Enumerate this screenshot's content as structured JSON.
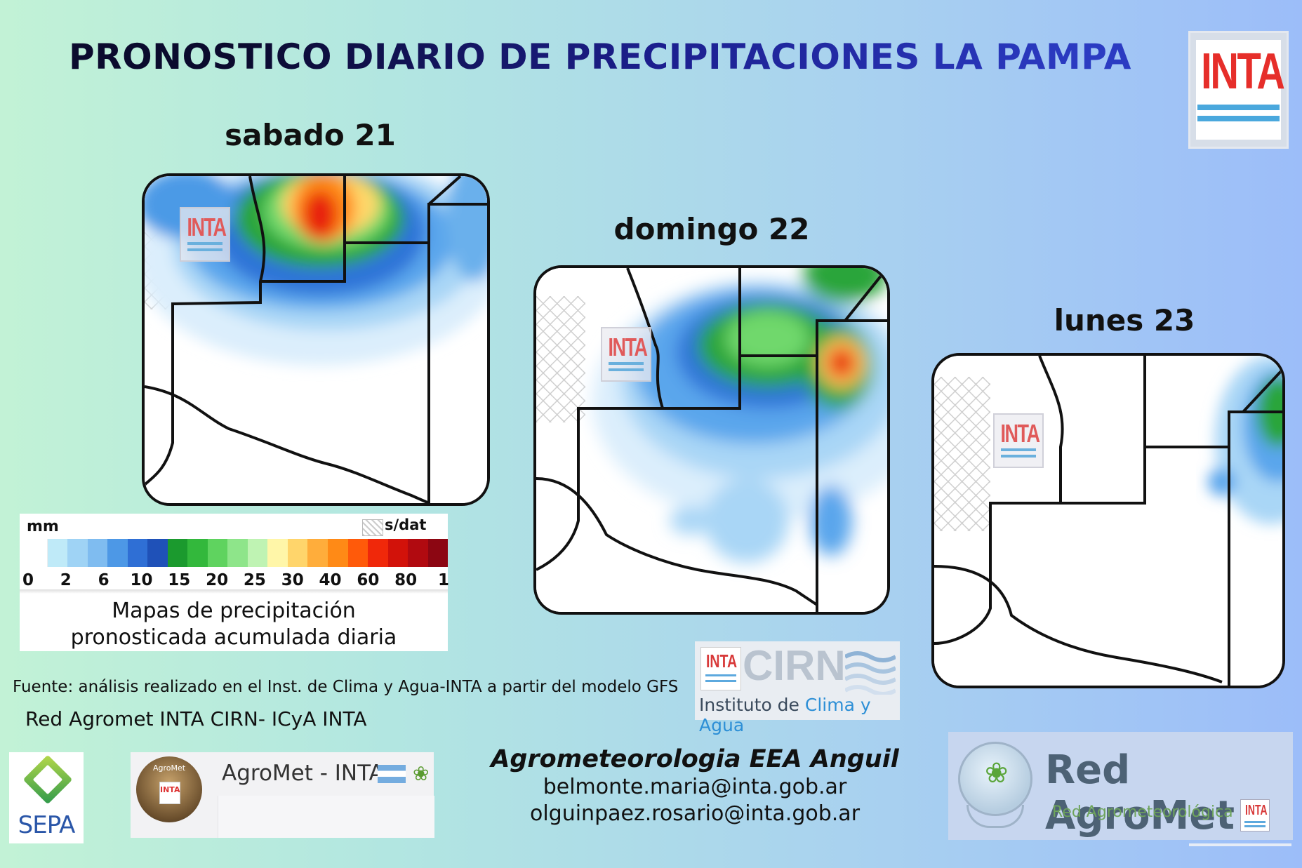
{
  "title": "PRONOSTICO DIARIO DE PRECIPITACIONES LA PAMPA",
  "days": [
    {
      "label": "sabado 21"
    },
    {
      "label": "domingo 22"
    },
    {
      "label": "lunes 23"
    }
  ],
  "watermark": "INTA",
  "logo_inta": "INTA",
  "legend": {
    "unit": "mm",
    "no_data": "s/dat",
    "ticks": [
      "0",
      "2",
      "6",
      "10",
      "15",
      "20",
      "25",
      "30",
      "40",
      "60",
      "80",
      "1"
    ],
    "colors": [
      "#ffffff",
      "#bfeaf8",
      "#9fd3f5",
      "#7fbcf0",
      "#4d98e6",
      "#2f6fd5",
      "#1f51b8",
      "#1b9a2e",
      "#33b83c",
      "#5fd35f",
      "#8ee58a",
      "#bff3b3",
      "#fff6a8",
      "#ffd56b",
      "#ffad3b",
      "#ff8a16",
      "#ff5a0a",
      "#f0280a",
      "#d2120a",
      "#b10a10",
      "#8c0612"
    ],
    "caption_line1": "Mapas de precipitación",
    "caption_line2": "pronosticada acumulada diaria"
  },
  "source": "Fuente: análisis realizado en el Inst. de Clima y Agua-INTA a partir del modelo GFS",
  "network": "Red Agromet INTA CIRN- ICyA INTA",
  "sepa": "SEPA",
  "agromet_card": {
    "avatar_label": "AgroMet",
    "avatar_badge": "INTA",
    "name": "AgroMet - INTA"
  },
  "contact": {
    "title": "Agrometeorologia EEA Anguil",
    "email1": "belmonte.maria@inta.gob.ar",
    "email2": "olguinpaez.rosario@inta.gob.ar"
  },
  "cirn": {
    "badge": "INTA",
    "word": "CIRN",
    "sub_prefix": "Instituto de ",
    "sub_highlight": "Clima y Agua"
  },
  "red_agromet": {
    "name": "Red AgroMet",
    "sub": "Red Agrometeorológica",
    "badge": "INTA"
  }
}
